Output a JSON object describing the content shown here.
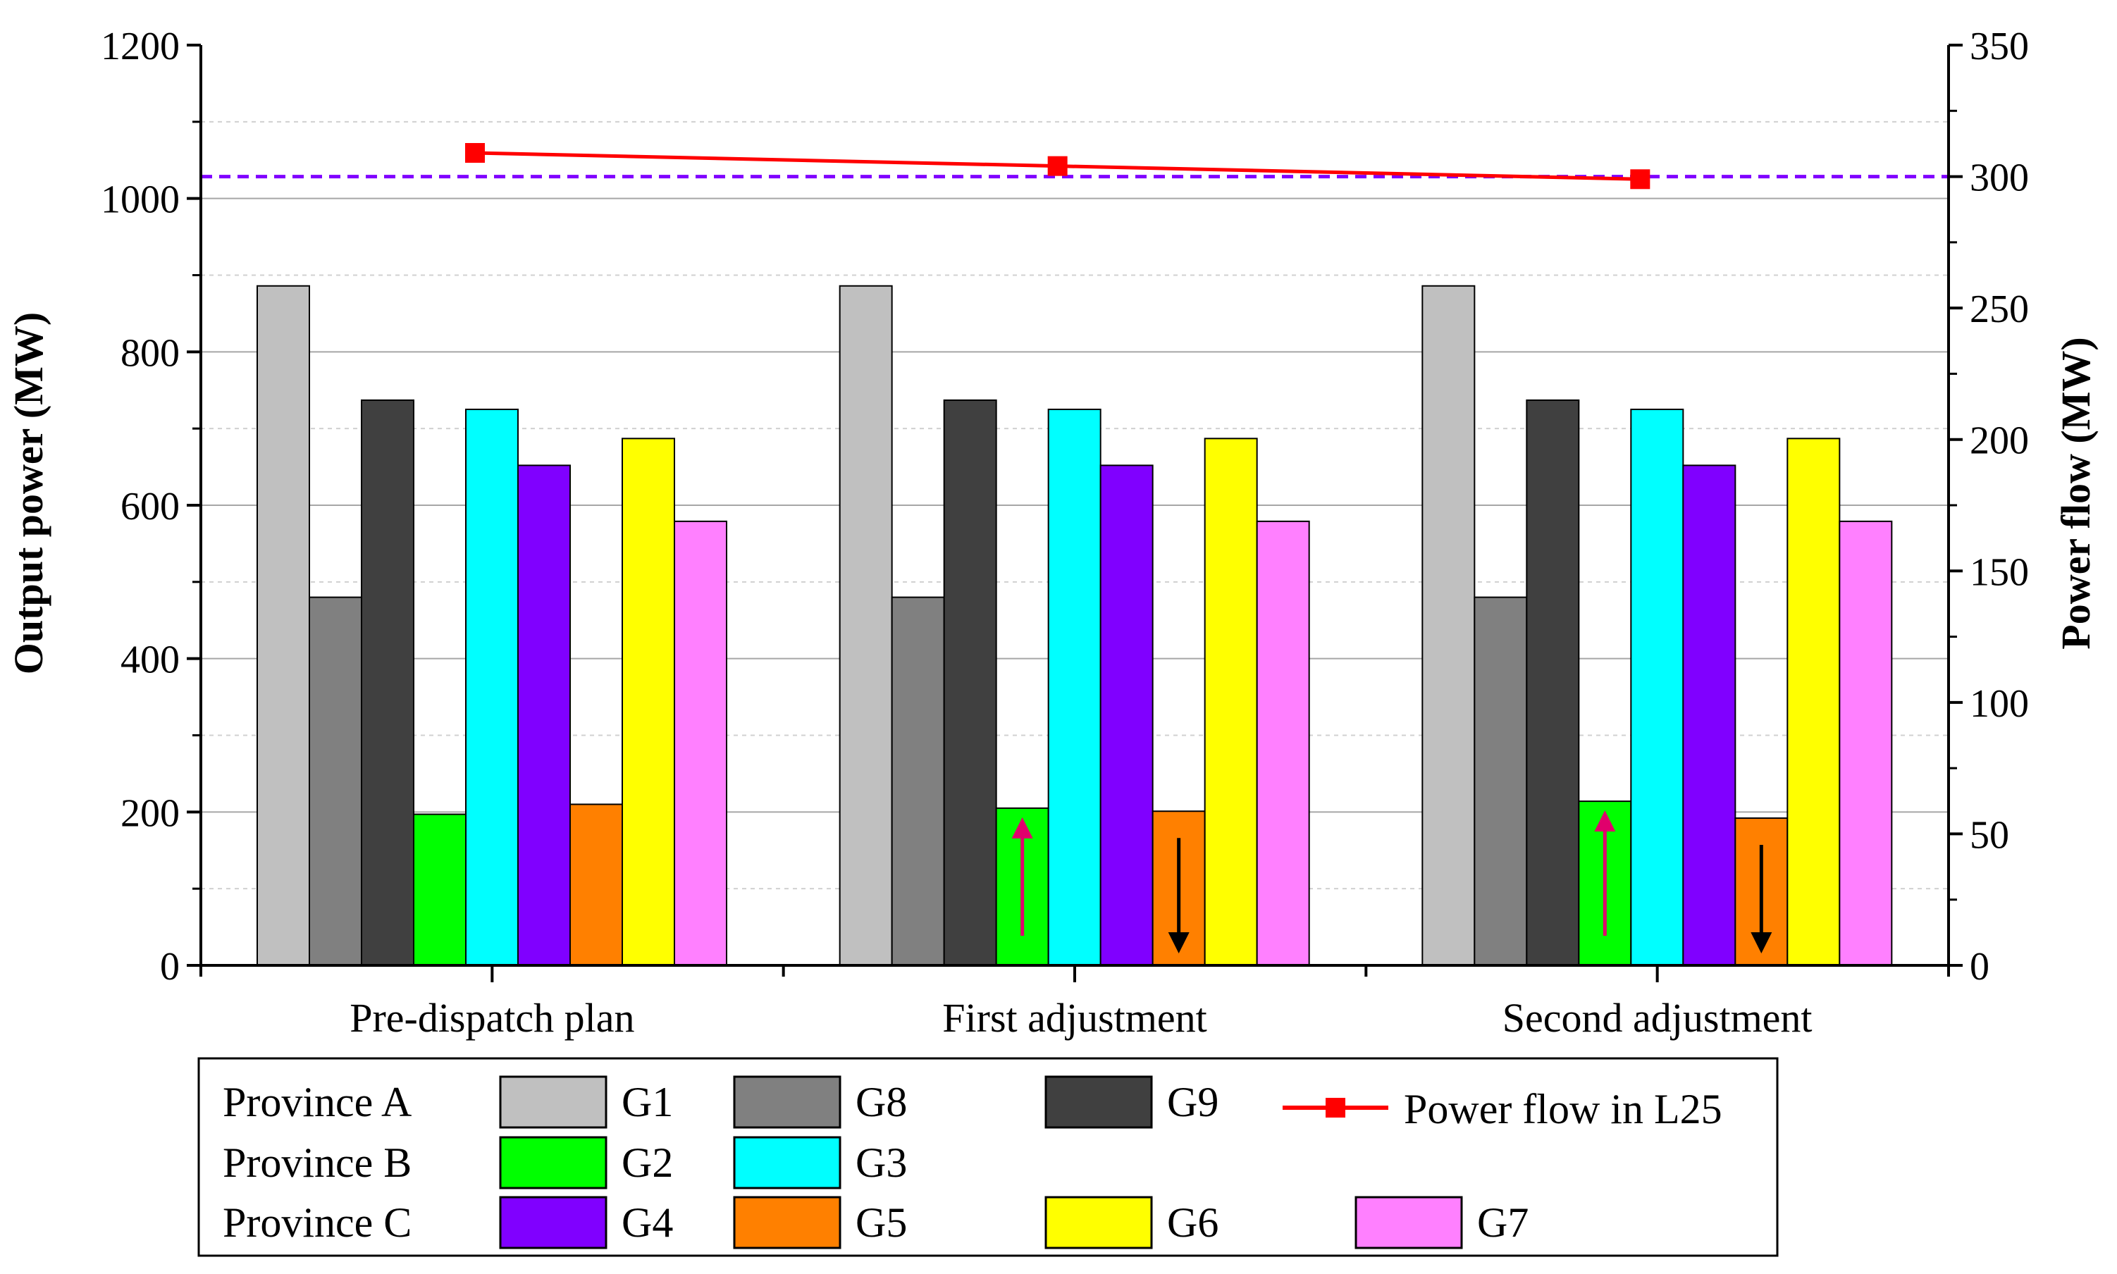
{
  "chart_data": {
    "type": "bar",
    "categories": [
      "Pre-dispatch plan",
      "First adjustment",
      "Second adjustment"
    ],
    "ylabel": "Output power (MW)",
    "y2label": "Power flow (MW)",
    "ylim": [
      0,
      1200
    ],
    "y2lim": [
      0,
      350
    ],
    "yticks": [
      "0",
      "200",
      "400",
      "600",
      "800",
      "1000",
      "1200"
    ],
    "y2ticks": [
      "0",
      "50",
      "100",
      "150",
      "200",
      "250",
      "300",
      "350"
    ],
    "grid": true,
    "series": [
      {
        "name": "G1",
        "color": "#C0C0C0",
        "values": [
          886,
          886,
          886
        ]
      },
      {
        "name": "G8",
        "color": "#808080",
        "values": [
          480,
          480,
          480
        ]
      },
      {
        "name": "G9",
        "color": "#404040",
        "values": [
          737,
          737,
          737
        ]
      },
      {
        "name": "G2",
        "color": "#00FF00",
        "values": [
          197,
          205,
          214
        ]
      },
      {
        "name": "G3",
        "color": "#00FFFF",
        "values": [
          725,
          725,
          725
        ]
      },
      {
        "name": "G4",
        "color": "#8000FF",
        "values": [
          652,
          652,
          652
        ]
      },
      {
        "name": "G5",
        "color": "#FF8000",
        "values": [
          210,
          201,
          192
        ]
      },
      {
        "name": "G6",
        "color": "#FFFF00",
        "values": [
          687,
          687,
          687
        ]
      },
      {
        "name": "G7",
        "color": "#FF80FF",
        "values": [
          579,
          579,
          579
        ]
      }
    ],
    "line_series": {
      "name": "Power flow in L25",
      "axis": "right",
      "color": "#FF0000",
      "values": [
        309,
        304,
        299
      ]
    },
    "reference_line": {
      "value": 300,
      "axis": "right",
      "color": "#8000FF",
      "style": "dashed"
    },
    "annotations": [
      {
        "category": "First adjustment",
        "series": "G2",
        "direction": "up",
        "color": "#E0006C"
      },
      {
        "category": "First adjustment",
        "series": "G5",
        "direction": "down",
        "color": "#000000"
      },
      {
        "category": "Second adjustment",
        "series": "G2",
        "direction": "up",
        "color": "#E0006C"
      },
      {
        "category": "Second adjustment",
        "series": "G5",
        "direction": "down",
        "color": "#000000"
      }
    ],
    "legend": {
      "placement": "bottom",
      "rows": [
        {
          "label": "Province A",
          "items": [
            "G1",
            "G8",
            "G9"
          ]
        },
        {
          "label": "Province B",
          "items": [
            "G2",
            "G3"
          ]
        },
        {
          "label": "Province C",
          "items": [
            "G4",
            "G5",
            "G6",
            "G7"
          ]
        }
      ],
      "line_item": "Power flow in L25"
    }
  }
}
